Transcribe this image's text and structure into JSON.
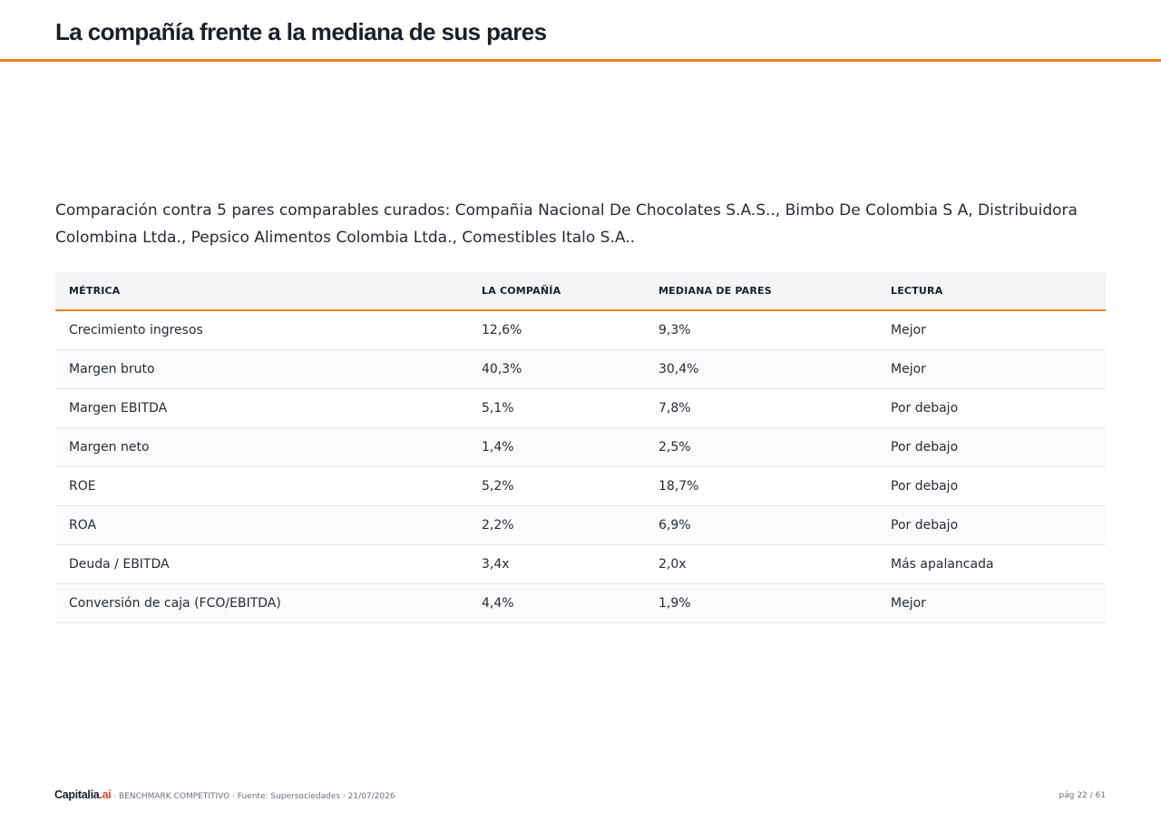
{
  "header": {
    "title": "La compañía frente a la mediana de sus pares",
    "accent_color": "#f0821e"
  },
  "intro": "Comparación contra 5 pares comparables curados: Compañia Nacional De Chocolates S.A.S.., Bimbo De Colombia S A, Distribuidora Colombina Ltda., Pepsico Alimentos Colombia Ltda., Comestibles Italo S.A..",
  "table": {
    "columns": [
      "MÉTRICA",
      "LA COMPAÑÍA",
      "MEDIANA DE PARES",
      "LECTURA"
    ],
    "rows": [
      [
        "Crecimiento ingresos",
        "12,6%",
        "9,3%",
        "Mejor"
      ],
      [
        "Margen bruto",
        "40,3%",
        "30,4%",
        "Mejor"
      ],
      [
        "Margen EBITDA",
        "5,1%",
        "7,8%",
        "Por debajo"
      ],
      [
        "Margen neto",
        "1,4%",
        "2,5%",
        "Por debajo"
      ],
      [
        "ROE",
        "5,2%",
        "18,7%",
        "Por debajo"
      ],
      [
        "ROA",
        "2,2%",
        "6,9%",
        "Por debajo"
      ],
      [
        "Deuda / EBITDA",
        "3,4x",
        "2,0x",
        "Más apalancada"
      ],
      [
        "Conversión de caja (FCO/EBITDA)",
        "4,4%",
        "1,9%",
        "Mejor"
      ]
    ]
  },
  "footer": {
    "logo_main": "Capitalia",
    "logo_suffix": ".ai",
    "info": " · BENCHMARK COMPETITIVO · Fuente: Supersociedades · 21/07/2026",
    "page": "pág 22 / 61",
    "logo_accent_color": "#e4412a"
  }
}
